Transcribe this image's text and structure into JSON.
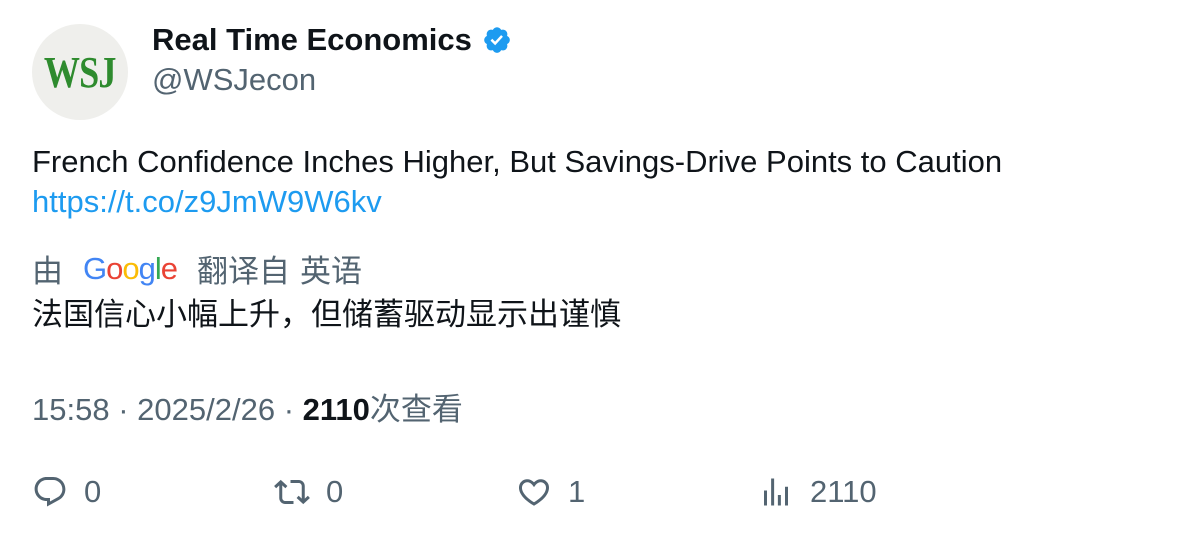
{
  "author": {
    "avatar_text": "WSJ",
    "display_name": "Real Time Economics",
    "handle": "@WSJecon",
    "verified_icon": "verified-badge-icon",
    "verified_color": "#1d9bf0"
  },
  "tweet": {
    "text": "French Confidence Inches Higher, But Savings-Drive Points to Caution",
    "link": "https://t.co/z9JmW9W6kv"
  },
  "translation": {
    "by_label": "由",
    "provider": "Google",
    "translated_from_label": "翻译自",
    "source_language": "英语",
    "text": "法国信心小幅上升，但储蓄驱动显示出谨慎"
  },
  "meta": {
    "time": "15:58",
    "separator": "·",
    "date": "2025/2/26",
    "views_count": "2110",
    "views_label": "次查看"
  },
  "actions": {
    "reply_count": "0",
    "retweet_count": "0",
    "like_count": "1",
    "views_count": "2110"
  },
  "colors": {
    "text_primary": "#0f1419",
    "text_secondary": "#536471",
    "link": "#1d9bf0",
    "avatar_bg": "#efefec",
    "avatar_logo": "#2e8b2e"
  }
}
